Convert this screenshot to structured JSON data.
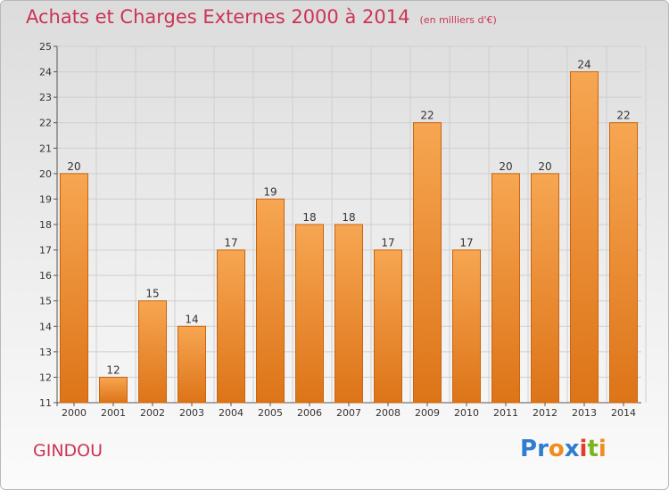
{
  "page": {
    "title": "Achats et Charges Externes 2000 à 2014",
    "unit_note": "(en milliers d'€)",
    "commune": "GINDOU",
    "logo": {
      "text": "Proxiti",
      "letters": [
        {
          "ch": "P",
          "color": "#2f7dd0"
        },
        {
          "ch": "r",
          "color": "#2f7dd0"
        },
        {
          "ch": "o",
          "color": "#f08c1e"
        },
        {
          "ch": "x",
          "color": "#2f7dd0"
        },
        {
          "ch": "i",
          "color": "#e53b2c"
        },
        {
          "ch": "t",
          "color": "#7ab51d"
        },
        {
          "ch": "i",
          "color": "#f08c1e"
        }
      ]
    }
  },
  "colors": {
    "title": "#cc3355",
    "bar_light": "#f7a652",
    "bar_dark": "#dd7418",
    "bar_border": "#c96410",
    "grid": "#cfcfcf",
    "axis": "#555555",
    "text": "#333333"
  },
  "chart_data": {
    "type": "bar",
    "title": "Achats et Charges Externes 2000 à 2014",
    "subtitle": "(en milliers d'€)",
    "xlabel": "",
    "ylabel": "",
    "categories": [
      "2000",
      "2001",
      "2002",
      "2003",
      "2004",
      "2005",
      "2006",
      "2007",
      "2008",
      "2009",
      "2010",
      "2011",
      "2012",
      "2013",
      "2014"
    ],
    "values": [
      20,
      12,
      15,
      14,
      17,
      19,
      18,
      18,
      17,
      22,
      17,
      20,
      20,
      24,
      22
    ],
    "data_labels": [
      "20",
      "12",
      "15",
      "14",
      "17",
      "19",
      "18",
      "18",
      "17",
      "22",
      "17",
      "20",
      "20",
      "24",
      "22"
    ],
    "ylim": [
      11,
      25
    ],
    "yticks": [
      11,
      12,
      13,
      14,
      15,
      16,
      17,
      18,
      19,
      20,
      21,
      22,
      23,
      24,
      25
    ],
    "grid": true,
    "legend": "none"
  }
}
